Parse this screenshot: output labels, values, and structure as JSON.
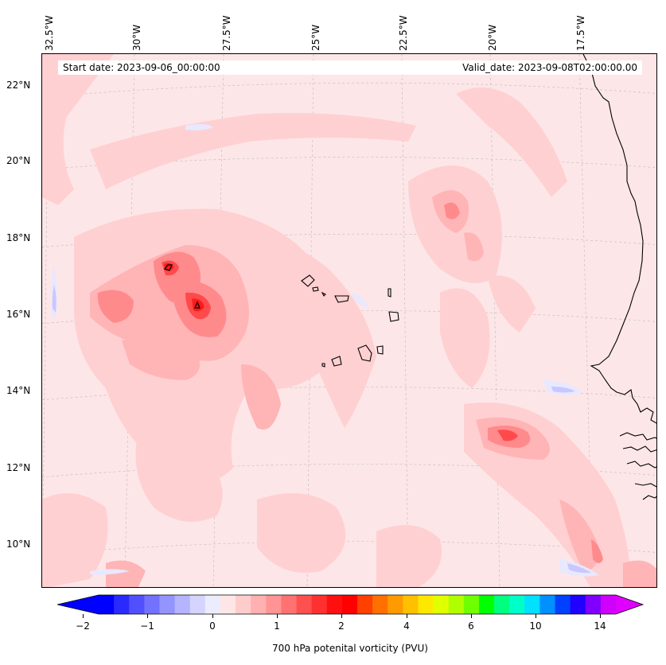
{
  "map": {
    "start_date": "Start date: 2023-09-06_00:00:00",
    "valid_date": "Valid_date: 2023-09-08T02:00:00.00",
    "lon_labels": [
      "32.5°W",
      "30°W",
      "27.5°W",
      "25°W",
      "22.5°W",
      "20°W",
      "17.5°W"
    ],
    "lat_labels": [
      "22°N",
      "20°N",
      "18°N",
      "16°N",
      "14°N",
      "12°N",
      "10°N"
    ],
    "background_color": "#fde6e8",
    "coastline_color": "#000000"
  },
  "colorbar": {
    "label": "700 hPa potenital vorticity (PVU)",
    "tick_labels": [
      "−2",
      "−1",
      "0",
      "1",
      "2",
      "4",
      "6",
      "10",
      "14"
    ],
    "colors": [
      "#0000ff",
      "#2a2aff",
      "#5050ff",
      "#7272ff",
      "#9494ff",
      "#b4b4ff",
      "#d4d4ff",
      "#ececff",
      "#ffe6e6",
      "#ffcccc",
      "#ffb0b0",
      "#ff9494",
      "#ff7272",
      "#ff5050",
      "#ff3030",
      "#ff1010",
      "#ff0000",
      "#ff4000",
      "#ff7000",
      "#ff9a00",
      "#ffc000",
      "#ffe800",
      "#e0ff00",
      "#b0ff00",
      "#70ff00",
      "#00ff00",
      "#00ff80",
      "#00ffc8",
      "#00e0ff",
      "#0090ff",
      "#0040ff",
      "#2000ff",
      "#8000ff",
      "#d000ff"
    ],
    "extend_min_color": "#0000ff",
    "extend_max_color": "#e000ff"
  }
}
